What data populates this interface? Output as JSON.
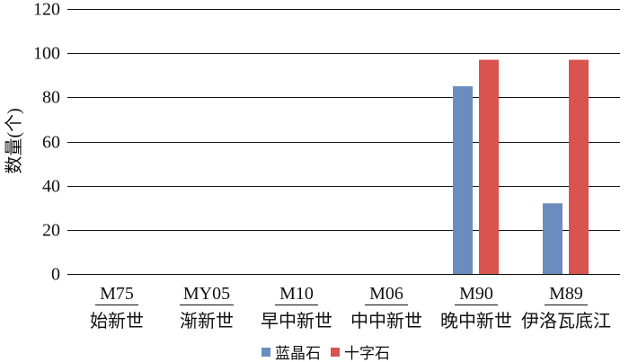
{
  "chart_data": {
    "type": "bar",
    "categories": [
      "M75",
      "MY05",
      "M10",
      "M06",
      "M90",
      "M89"
    ],
    "category_sublabels": [
      "始新世",
      "渐新世",
      "早中新世",
      "中中新世",
      "晚中新世",
      "伊洛瓦底江"
    ],
    "series": [
      {
        "name": "蓝晶石",
        "values": [
          0,
          0,
          0,
          0,
          85,
          32
        ],
        "color": "#6b8cbe"
      },
      {
        "name": "十字石",
        "values": [
          0,
          0,
          0,
          0,
          97,
          97
        ],
        "color": "#d9534f"
      }
    ],
    "title": "",
    "xlabel": "",
    "ylabel": "数量(个)",
    "ylim": [
      0,
      120
    ],
    "yticks": [
      0,
      20,
      40,
      60,
      80,
      100,
      120
    ],
    "grid": true,
    "legend": "bottom-center"
  }
}
